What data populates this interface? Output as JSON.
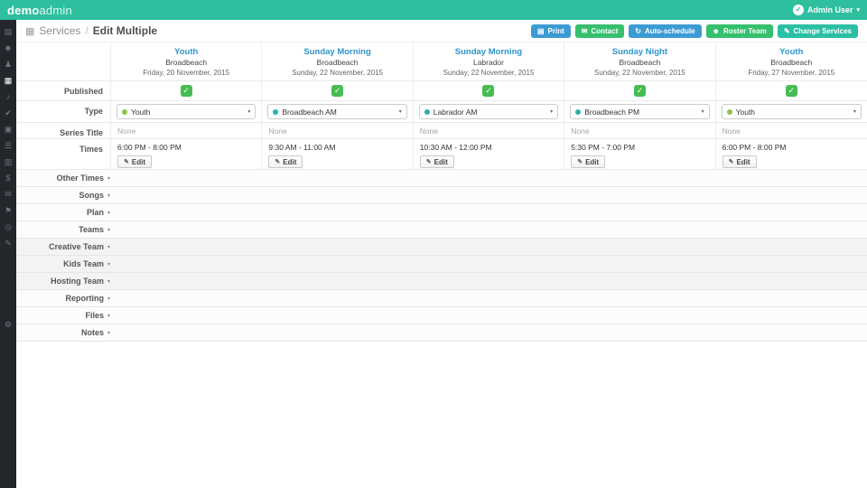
{
  "colors": {
    "topbar": "#2ebf9f",
    "btn_blue": "#3d9bd4",
    "btn_green": "#35bf6e",
    "btn_teal": "#2bbfa4",
    "checkbox_green": "#46bc52",
    "col_title_blue": "#2e95c8"
  },
  "icons": {
    "user_check": "✓",
    "user_caret": "▾",
    "breadcrumb_calendar": "▦",
    "print": "▤",
    "contact": "✉",
    "autoschedule": "↻",
    "roster": "☻",
    "change": "✎",
    "checkbox_check": "✓",
    "select_caret": "▾",
    "pencil": "✎",
    "section_caret": "▾"
  },
  "topbar": {
    "logo_bold": "demo",
    "logo_light": "admin",
    "user": "Admin User"
  },
  "sidebar": {
    "icons": [
      {
        "name": "dashboard-icon",
        "glyph": "▤"
      },
      {
        "name": "profile-icon",
        "glyph": "☻"
      },
      {
        "name": "people-icon",
        "glyph": "♟"
      },
      {
        "name": "calendar-icon",
        "glyph": "▦",
        "active": true
      },
      {
        "name": "music-icon",
        "glyph": "♪"
      },
      {
        "name": "checkin-icon",
        "glyph": "✔"
      },
      {
        "name": "resources-icon",
        "glyph": "▣"
      },
      {
        "name": "forms-icon",
        "glyph": "☰"
      },
      {
        "name": "reports-icon",
        "glyph": "▥"
      },
      {
        "name": "finance-icon",
        "glyph": "$"
      },
      {
        "name": "mail-icon",
        "glyph": "✉"
      },
      {
        "name": "groups-icon",
        "glyph": "⚑"
      },
      {
        "name": "feed-icon",
        "glyph": "◎"
      },
      {
        "name": "files-icon",
        "glyph": "✎"
      },
      {
        "name": "settings-icon",
        "glyph": "⚙"
      }
    ]
  },
  "header": {
    "breadcrumb_section": "Services",
    "breadcrumb_sep": "/",
    "page_title": "Edit Multiple",
    "buttons": [
      {
        "label": "Print",
        "color": "#3d9bd4"
      },
      {
        "label": "Contact",
        "color": "#35bf6e"
      },
      {
        "label": "Auto-schedule",
        "color": "#3d9bd4"
      },
      {
        "label": "Roster Team",
        "color": "#35bf6e"
      },
      {
        "label": "Change Services",
        "color": "#2bbfa4"
      }
    ]
  },
  "table": {
    "row_labels": {
      "published": "Published",
      "type": "Type",
      "series_title": "Series Title",
      "times": "Times"
    },
    "edit_label": "Edit",
    "columns": [
      {
        "title": "Youth",
        "campus": "Broadbeach",
        "date": "Friday, 20 November, 2015",
        "published": true,
        "type_label": "Youth",
        "type_dot": "#8bc34a",
        "series_title": "None",
        "time": "6:00 PM - 8:00 PM"
      },
      {
        "title": "Sunday Morning",
        "campus": "Broadbeach",
        "date": "Sunday, 22 November, 2015",
        "published": true,
        "type_label": "Broadbeach AM",
        "type_dot": "#2bb3a8",
        "series_title": "None",
        "time": "9:30 AM - 11:00 AM"
      },
      {
        "title": "Sunday Morning",
        "campus": "Labrador",
        "date": "Sunday, 22 November, 2015",
        "published": true,
        "type_label": "Labrador AM",
        "type_dot": "#2bb3a8",
        "series_title": "None",
        "time": "10:30 AM - 12:00 PM"
      },
      {
        "title": "Sunday Night",
        "campus": "Broadbeach",
        "date": "Sunday, 22 November, 2015",
        "published": true,
        "type_label": "Broadbeach PM",
        "type_dot": "#2bb3a8",
        "series_title": "None",
        "time": "5:30 PM - 7:00 PM"
      },
      {
        "title": "Youth",
        "campus": "Broadbeach",
        "date": "Friday, 27 November, 2015",
        "published": true,
        "type_label": "Youth",
        "type_dot": "#8bc34a",
        "series_title": "None",
        "time": "6:00 PM - 8:00 PM"
      }
    ]
  },
  "sections": [
    {
      "label": "Other Times",
      "shaded": false
    },
    {
      "label": "Songs",
      "shaded": false
    },
    {
      "label": "Plan",
      "shaded": false
    },
    {
      "label": "Teams",
      "shaded": false
    },
    {
      "label": "Creative Team",
      "shaded": true
    },
    {
      "label": "Kids Team",
      "shaded": true
    },
    {
      "label": "Hosting Team",
      "shaded": true
    },
    {
      "label": "Reporting",
      "shaded": false
    },
    {
      "label": "Files",
      "shaded": false
    },
    {
      "label": "Notes",
      "shaded": false
    }
  ]
}
